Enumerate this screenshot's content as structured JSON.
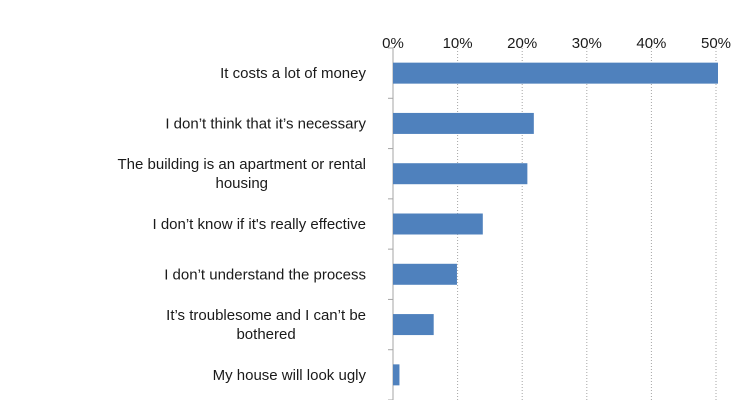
{
  "chart_data": {
    "type": "bar",
    "orientation": "horizontal",
    "title": "",
    "xlabel": "",
    "ylabel": "",
    "categories": [
      "It costs a lot of money",
      "I don’t think that it’s necessary",
      "The building is an apartment or rental housing",
      "I don’t know if it's really effective",
      "I don’t understand the process",
      "It’s troublesome and I can’t be bothered",
      "My house will look ugly"
    ],
    "category_lines": [
      [
        "It costs a lot of money"
      ],
      [
        "I don’t think that it’s necessary"
      ],
      [
        "The building is an apartment or rental",
        "housing"
      ],
      [
        "I don’t know if it's really effective"
      ],
      [
        "I don’t understand the process"
      ],
      [
        "It’s troublesome and I can’t be",
        "bothered"
      ],
      [
        "My house will look ugly"
      ]
    ],
    "values": [
      50.5,
      21.8,
      20.8,
      13.9,
      9.9,
      6.3,
      1.0
    ],
    "xlim": [
      0,
      50
    ],
    "x_ticks": [
      0,
      10,
      20,
      30,
      40,
      50
    ],
    "x_tick_labels": [
      "0%",
      "10%",
      "20%",
      "30%",
      "40%",
      "50%"
    ],
    "x_axis_position": "top",
    "grid": "vertical-dotted",
    "legend": "none",
    "bar_color": "#4f81bd",
    "grid_color": "#a6a6a6",
    "axis_color": "#a6a6a6"
  }
}
